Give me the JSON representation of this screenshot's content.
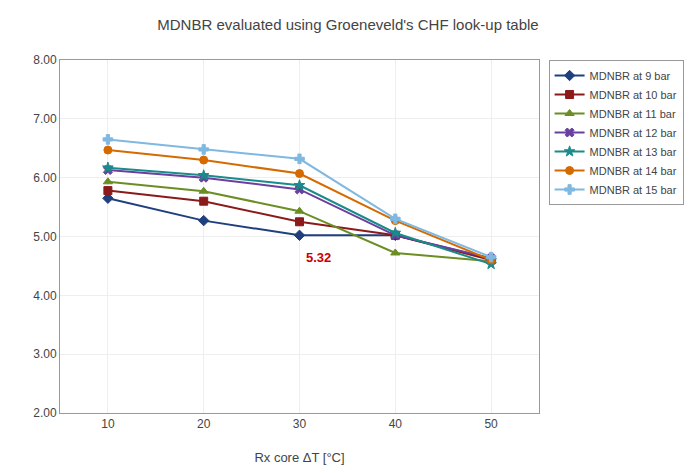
{
  "chart_data": {
    "type": "line",
    "title": "MDNBR evaluated using Groeneveld's CHF look-up table",
    "x_label": "Rx core ΔT [°C]",
    "x": [
      10,
      20,
      30,
      40,
      50
    ],
    "xlim": [
      5,
      55
    ],
    "xticks": [
      10,
      20,
      30,
      40,
      50
    ],
    "ylim": [
      2.0,
      8.0
    ],
    "yticks": [
      {
        "value": 2.0,
        "label": "2.00"
      },
      {
        "value": 3.0,
        "label": "3.00"
      },
      {
        "value": 4.0,
        "label": "4.00"
      },
      {
        "value": 5.0,
        "label": "5.00"
      },
      {
        "value": 6.0,
        "label": "6.00"
      },
      {
        "value": 7.0,
        "label": "7.00"
      },
      {
        "value": 8.0,
        "label": "8.00"
      }
    ],
    "grid": true,
    "legend": "right",
    "series": [
      {
        "name": "MDNBR at 9 bar",
        "color": "#1F3F7E",
        "marker": "diamond",
        "values": [
          5.65,
          5.27,
          5.02,
          5.02,
          4.62
        ]
      },
      {
        "name": "MDNBR at 10 bar",
        "color": "#8B1A1A",
        "marker": "square",
        "values": [
          5.78,
          5.6,
          5.25,
          5.02,
          4.6
        ]
      },
      {
        "name": "MDNBR at 11 bar",
        "color": "#6B8E23",
        "marker": "triangle-up",
        "values": [
          5.93,
          5.77,
          5.43,
          4.72,
          4.58
        ]
      },
      {
        "name": "MDNBR at 12 bar",
        "color": "#6A3F9E",
        "marker": "x",
        "values": [
          6.13,
          6.0,
          5.8,
          5.02,
          4.63
        ]
      },
      {
        "name": "MDNBR at 13 bar",
        "color": "#1A8A8A",
        "marker": "star",
        "values": [
          6.17,
          6.04,
          5.87,
          5.06,
          4.53
        ]
      },
      {
        "name": "MDNBR at 14 bar",
        "color": "#D46A00",
        "marker": "circle",
        "values": [
          6.47,
          6.3,
          6.07,
          5.27,
          4.6
        ]
      },
      {
        "name": "MDNBR at 15 bar",
        "color": "#7FB8E0",
        "marker": "cross",
        "values": [
          6.65,
          6.48,
          6.32,
          5.3,
          4.65
        ]
      }
    ],
    "annotations": [
      {
        "text": "5.32",
        "x": 30.5,
        "y": 4.8,
        "color": "#CC0000"
      }
    ]
  }
}
